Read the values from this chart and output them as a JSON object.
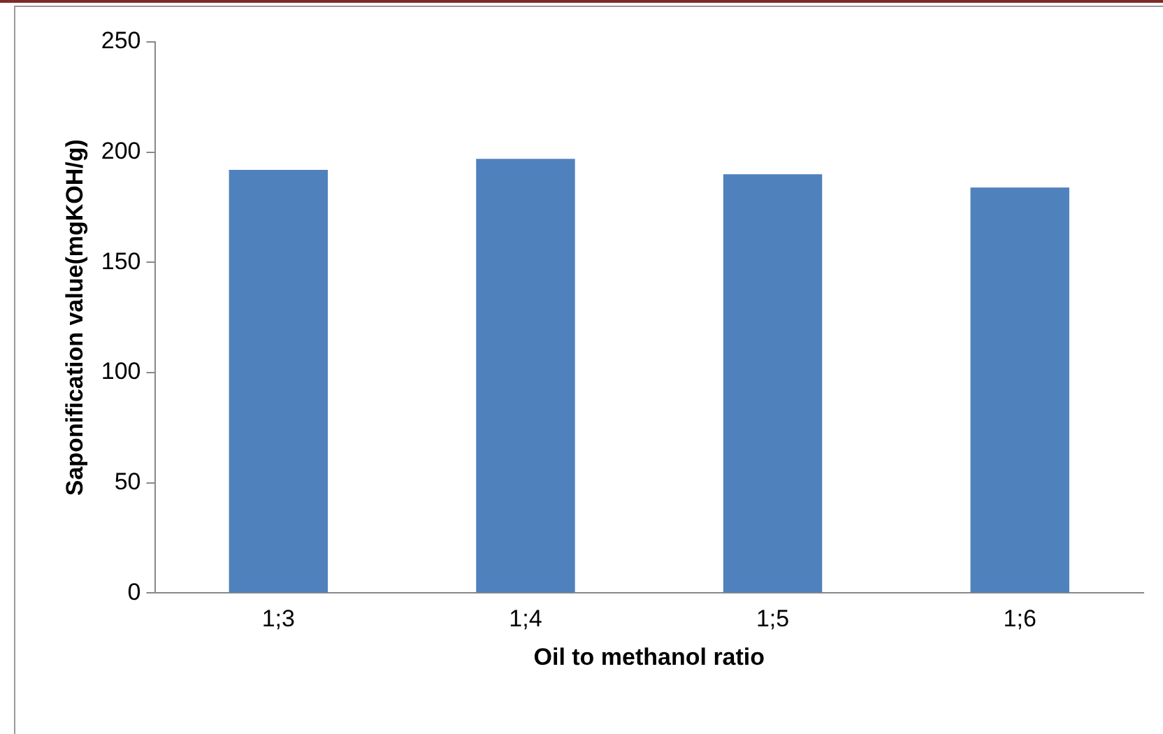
{
  "chart_data": {
    "type": "bar",
    "xlabel": "Oil to methanol ratio",
    "ylabel": "Saponification value(mgKOH/g)",
    "categories": [
      "1;3",
      "1;4",
      "1;5",
      "1;6"
    ],
    "values": [
      192,
      197,
      190,
      184
    ],
    "color": "#4f81bd",
    "ylim": [
      0,
      250
    ],
    "yticks": [
      0,
      50,
      100,
      150,
      200,
      250
    ],
    "grid": false,
    "legend": false
  }
}
